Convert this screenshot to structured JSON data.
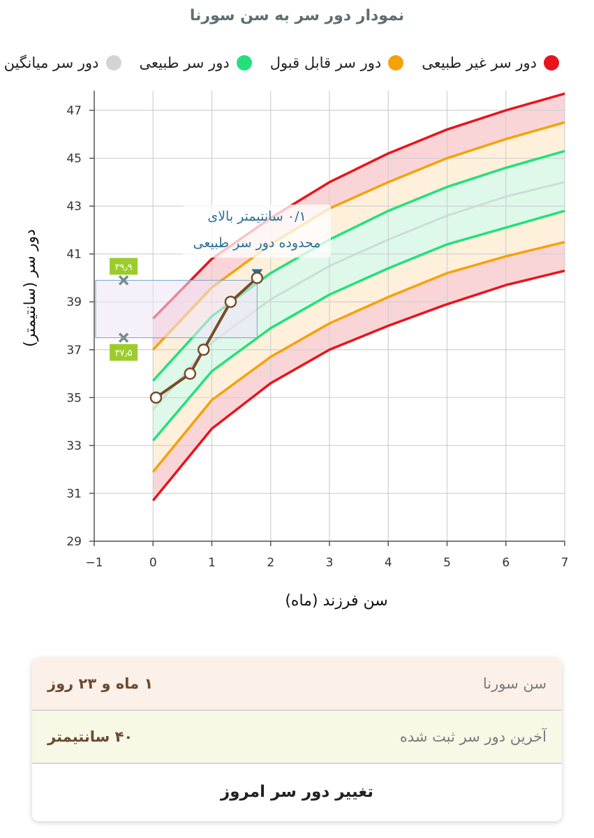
{
  "chart_data": {
    "type": "line",
    "title": "نمودار دور سر به سن سورنا",
    "xlabel": "سن فرزند (ماه)",
    "ylabel": "دور سر (سانتیمتر)",
    "xlim": [
      -1,
      7
    ],
    "ylim": [
      29,
      48
    ],
    "xticks": [
      -1,
      0,
      1,
      2,
      3,
      4,
      5,
      6,
      7
    ],
    "xtick_labels": [
      "−1",
      "0",
      "1",
      "2",
      "3",
      "4",
      "5",
      "6",
      "7"
    ],
    "yticks": [
      29,
      31,
      33,
      35,
      37,
      39,
      41,
      43,
      45,
      47
    ],
    "grid": true,
    "legend": [
      {
        "label": "دور سر غیر طبیعی",
        "color": "#e8141c"
      },
      {
        "label": "دور سر قابل قبول",
        "color": "#f5a20a"
      },
      {
        "label": "دور سر طبیعی",
        "color": "#23e07c"
      },
      {
        "label": "دور سر میانگین",
        "color": "#d4d4d4"
      }
    ],
    "curve_x": [
      0,
      1,
      2,
      3,
      4,
      5,
      6,
      7
    ],
    "curves": [
      {
        "name": "abnormal_upper",
        "color": "#e8141c",
        "values": [
          38.3,
          40.8,
          42.5,
          44.0,
          45.2,
          46.2,
          47.0,
          47.7
        ]
      },
      {
        "name": "acceptable_upper",
        "color": "#f5a20a",
        "values": [
          37.0,
          39.6,
          41.4,
          42.9,
          44.0,
          45.0,
          45.8,
          46.5
        ]
      },
      {
        "name": "normal_upper",
        "color": "#23e07c",
        "values": [
          35.7,
          38.4,
          40.2,
          41.6,
          42.8,
          43.8,
          44.6,
          45.3
        ]
      },
      {
        "name": "mean",
        "color": "#c9d9cf",
        "values": [
          34.5,
          37.3,
          39.1,
          40.5,
          41.6,
          42.6,
          43.4,
          44.0
        ]
      },
      {
        "name": "normal_lower",
        "color": "#23e07c",
        "values": [
          33.2,
          36.1,
          37.9,
          39.3,
          40.4,
          41.4,
          42.1,
          42.8
        ]
      },
      {
        "name": "acceptable_lower",
        "color": "#f5a20a",
        "values": [
          31.9,
          34.9,
          36.7,
          38.1,
          39.2,
          40.2,
          40.9,
          41.5
        ]
      },
      {
        "name": "abnormal_lower",
        "color": "#e8141c",
        "values": [
          30.7,
          33.7,
          35.6,
          37.0,
          38.0,
          38.9,
          39.7,
          40.3
        ]
      }
    ],
    "bands": [
      {
        "upper": "abnormal_upper",
        "lower": "acceptable_upper",
        "color": "#f6b3b6"
      },
      {
        "upper": "acceptable_upper",
        "lower": "normal_upper",
        "color": "#fde3bd"
      },
      {
        "upper": "normal_upper",
        "lower": "normal_lower",
        "color": "#c3f2d9"
      },
      {
        "upper": "normal_lower",
        "lower": "acceptable_lower",
        "color": "#fde3bd"
      },
      {
        "upper": "acceptable_lower",
        "lower": "abnormal_lower",
        "color": "#f6b3b6"
      }
    ],
    "measurements": {
      "color": "#7a4b25",
      "x": [
        0.05,
        0.63,
        0.86,
        1.32,
        1.77
      ],
      "y": [
        35.0,
        36.0,
        37.0,
        39.0,
        40.0
      ]
    },
    "normal_range_marker": {
      "x": -0.5,
      "top": 39.9,
      "bottom": 37.5,
      "top_label": "۳۹٫۹",
      "bottom_label": "۳۷٫۵",
      "current_x": 1.77
    },
    "annotation": {
      "line1": "۰/۱ سانتیمتر بالای",
      "line2": "محدوده دور سر طبیعی"
    }
  },
  "summary": {
    "age_label": "سن سورنا",
    "age_value": "۱ ماه و ۲۳ روز",
    "circumference_label": "آخرین دور سر ثبت شده",
    "circumference_value": "۴۰ سانتیمتر",
    "action_label": "تغییر دور سر امروز"
  }
}
